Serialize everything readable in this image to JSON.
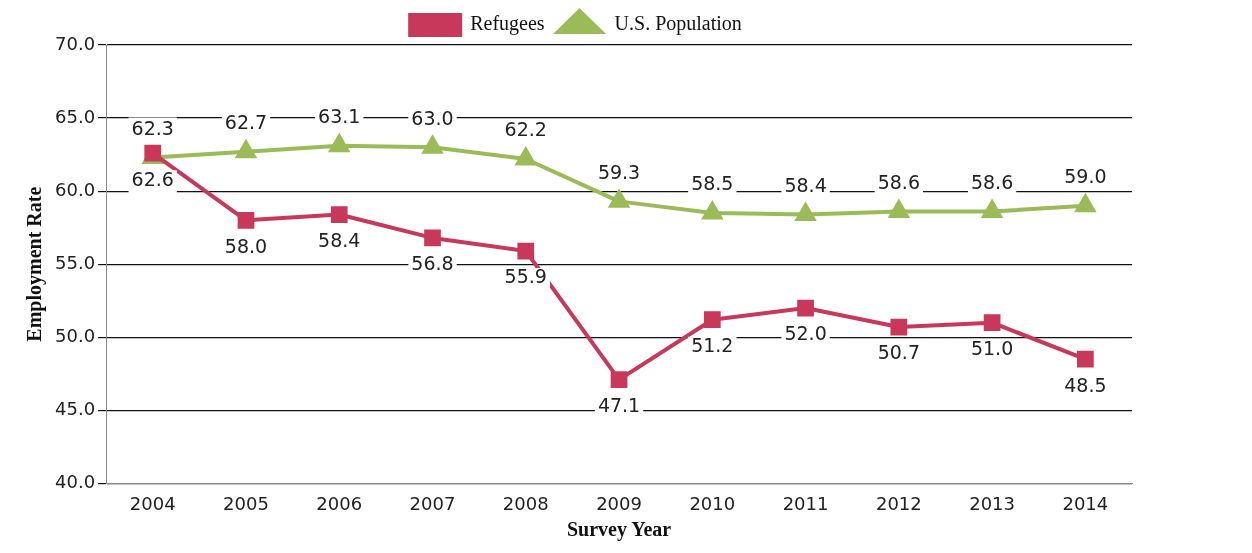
{
  "chart_data": {
    "type": "line",
    "xlabel": "Survey Year",
    "ylabel": "Employment Rate",
    "categories": [
      "2004",
      "2005",
      "2006",
      "2007",
      "2008",
      "2009",
      "2010",
      "2011",
      "2012",
      "2013",
      "2014"
    ],
    "series": [
      {
        "name": "Refugees",
        "color": "#c8385a",
        "marker": "square",
        "values": [
          62.6,
          58.0,
          58.4,
          56.8,
          55.9,
          47.1,
          51.2,
          52.0,
          50.7,
          51.0,
          48.5
        ],
        "value_labels": [
          "62.6",
          "58.0",
          "58.4",
          "56.8",
          "55.9",
          "47.1",
          "51.2",
          "52.0",
          "50.7",
          "51.0",
          "48.5"
        ]
      },
      {
        "name": "U.S. Population",
        "color": "#9bbb59",
        "marker": "triangle",
        "values": [
          62.3,
          62.7,
          63.1,
          63.0,
          62.2,
          59.3,
          58.5,
          58.4,
          58.6,
          58.6,
          59.0
        ],
        "value_labels": [
          "62.3",
          "62.7",
          "63.1",
          "63.0",
          "62.2",
          "59.3",
          "58.5",
          "58.4",
          "58.6",
          "58.6",
          "59.0"
        ]
      }
    ],
    "ylim": [
      40,
      70
    ],
    "yticks": [
      {
        "value": 40,
        "label": "40.0"
      },
      {
        "value": 45,
        "label": "45.0"
      },
      {
        "value": 50,
        "label": "50.0"
      },
      {
        "value": 55,
        "label": "55.0"
      },
      {
        "value": 60,
        "label": "60.0"
      },
      {
        "value": 65,
        "label": "65.0"
      },
      {
        "value": 70,
        "label": "70.0"
      }
    ],
    "grid": "y",
    "legend": "top",
    "line_style": "solid"
  }
}
